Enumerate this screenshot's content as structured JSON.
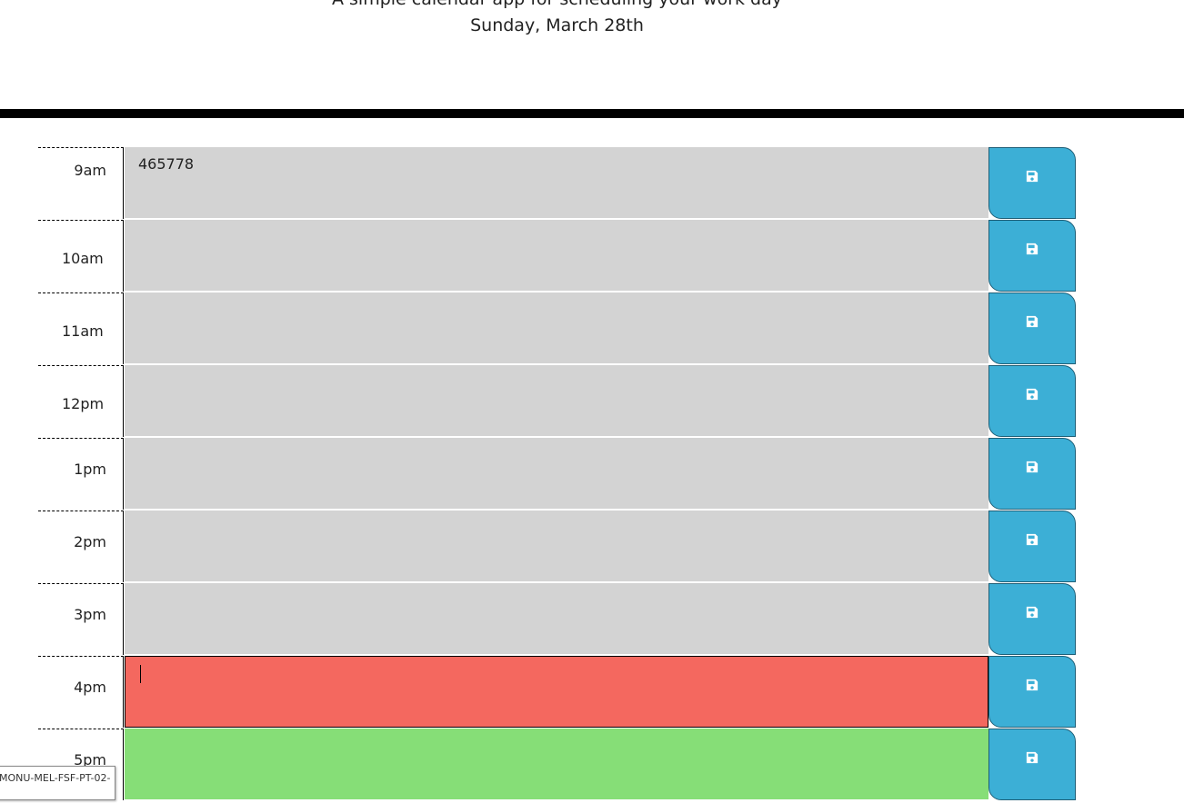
{
  "header": {
    "lead": "A simple calendar app for scheduling your work day",
    "current_date": "Sunday, March 28th"
  },
  "colors": {
    "past": "#d3d3d3",
    "present": "#f4685f",
    "future": "#86de77",
    "save_button": "#3cafd6"
  },
  "rows": [
    {
      "hour": "9am",
      "text": "465778",
      "state": "past",
      "save_icon": "save-icon"
    },
    {
      "hour": "10am",
      "text": "",
      "state": "past",
      "save_icon": "save-icon"
    },
    {
      "hour": "11am",
      "text": "",
      "state": "past",
      "save_icon": "save-icon"
    },
    {
      "hour": "12pm",
      "text": "",
      "state": "past",
      "save_icon": "save-icon"
    },
    {
      "hour": "1pm",
      "text": "",
      "state": "past",
      "save_icon": "save-icon"
    },
    {
      "hour": "2pm",
      "text": "",
      "state": "past",
      "save_icon": "save-icon"
    },
    {
      "hour": "3pm",
      "text": "",
      "state": "past",
      "save_icon": "save-icon"
    },
    {
      "hour": "4pm",
      "text": "",
      "state": "present",
      "save_icon": "save-icon"
    },
    {
      "hour": "5pm",
      "text": "",
      "state": "future",
      "save_icon": "save-icon"
    }
  ],
  "tooltip": {
    "text": "MONU-MEL-FSF-PT-02-"
  }
}
